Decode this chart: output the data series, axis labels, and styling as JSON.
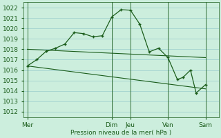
{
  "background_color": "#cceedd",
  "grid_color": "#99cccc",
  "line_color": "#1a5c1a",
  "ylim": [
    1011.5,
    1022.5
  ],
  "yticks": [
    1012,
    1013,
    1014,
    1015,
    1016,
    1017,
    1018,
    1019,
    1020,
    1021,
    1022
  ],
  "xlabel": "Pression niveau de la mer( hPa )",
  "day_labels": [
    "Mer",
    "Dim",
    "Jeu",
    "Ven",
    "Sam"
  ],
  "day_positions": [
    0.0,
    4.5,
    5.5,
    7.5,
    9.5
  ],
  "xlim": [
    -0.2,
    10.2
  ],
  "vline_positions": [
    0.0,
    4.5,
    5.5,
    7.5,
    9.5
  ],
  "line2_x": [
    0,
    9.5
  ],
  "line2_y": [
    1018.0,
    1017.2
  ],
  "line3_x": [
    0,
    9.5
  ],
  "line3_y": [
    1016.4,
    1014.2
  ],
  "zigzag_x": [
    0,
    0.5,
    1.0,
    1.5,
    2.0,
    2.5,
    3.0,
    3.5,
    4.0,
    4.5,
    5.0,
    5.5,
    6.0,
    6.5,
    7.0,
    7.5,
    8.0,
    8.3,
    8.7,
    9.0,
    9.5
  ],
  "zigzag_y": [
    1016.4,
    1017.0,
    1017.8,
    1018.1,
    1018.5,
    1019.6,
    1019.5,
    1019.2,
    1019.3,
    1021.1,
    1021.8,
    1021.75,
    1020.4,
    1017.75,
    1018.1,
    1017.2,
    1015.1,
    1015.3,
    1016.0,
    1013.8,
    1014.6
  ],
  "label_fontsize": 6.5,
  "tick_fontsize": 6.5
}
